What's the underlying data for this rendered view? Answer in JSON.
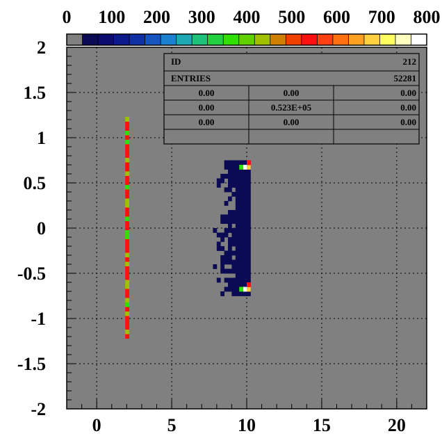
{
  "chart_data": {
    "type": "heatmap",
    "title": "",
    "xlabel": "",
    "ylabel": "",
    "xlim": [
      -2,
      22
    ],
    "ylim": [
      -2,
      2
    ],
    "x_ticks": [
      "0",
      "5",
      "10",
      "15",
      "20"
    ],
    "y_ticks": [
      "2",
      "1.5",
      "1",
      "0.5",
      "0",
      "-0.5",
      "-1",
      "-1.5",
      "-2"
    ],
    "colorbar": {
      "range": [
        0,
        800
      ],
      "ticks": [
        "0",
        "100",
        "200",
        "300",
        "400",
        "500",
        "600",
        "700",
        "800"
      ],
      "colors": [
        "#808080",
        "#0a0a55",
        "#0b0b70",
        "#0d1a8a",
        "#1030a5",
        "#1655c0",
        "#1c80d0",
        "#1ea8b5",
        "#1fc07a",
        "#25d040",
        "#30e000",
        "#60d000",
        "#a0c000",
        "#d08000",
        "#f04000",
        "#ff1010",
        "#ff4010",
        "#ff7010",
        "#ffa020",
        "#ffd040",
        "#ffff60",
        "#ffffc0",
        "#ffffff"
      ]
    },
    "grid": true,
    "stats_box": {
      "id_label": "ID",
      "id_value": "212",
      "entries_label": "ENTRIES",
      "entries_value": "52281",
      "rows": [
        [
          "0.00",
          "0.00",
          "0.00"
        ],
        [
          "0.00",
          "0.523E+05",
          "0.00"
        ],
        [
          "0.00",
          "0.00",
          "0.00"
        ]
      ]
    },
    "features": [
      {
        "name": "thin vertical strip",
        "x": 1.9,
        "y_range": [
          -1.22,
          1.22
        ],
        "dominant_colors": [
          "#ff1010",
          "#a0c000",
          "#30e000"
        ]
      },
      {
        "name": "dense block",
        "x_range": [
          7.5,
          10.2
        ],
        "y_range": [
          -0.75,
          0.75
        ],
        "fill_color": "#0a0a55",
        "corner_colors": [
          "#ffffff",
          "#ffd040",
          "#30e000",
          "#ff1010"
        ]
      }
    ]
  }
}
